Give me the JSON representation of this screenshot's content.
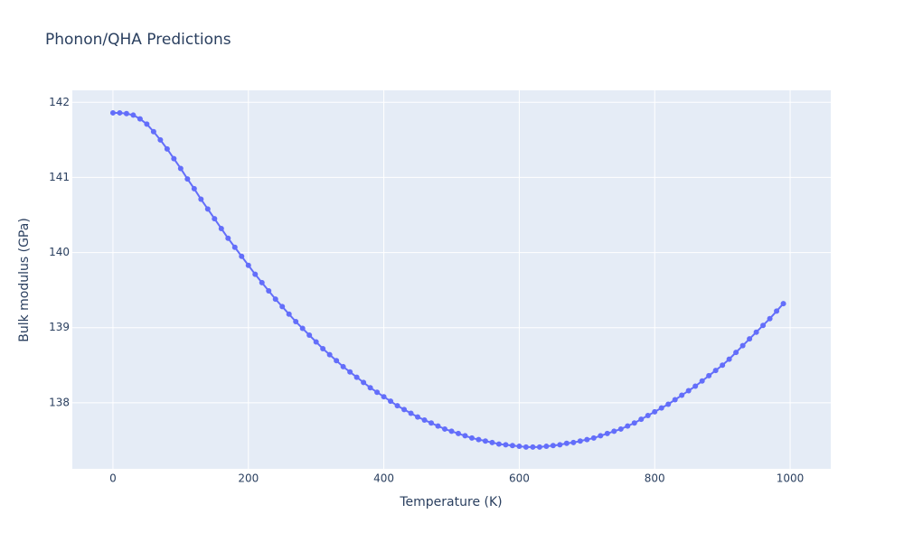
{
  "chart_data": {
    "type": "line",
    "title": "Phonon/QHA Predictions",
    "x_label": "Temperature (K)",
    "y_label": "Bulk modulus (GPa)",
    "x": [
      0,
      10,
      20,
      30,
      40,
      50,
      60,
      70,
      80,
      90,
      100,
      110,
      120,
      130,
      140,
      150,
      160,
      170,
      180,
      190,
      200,
      210,
      220,
      230,
      240,
      250,
      260,
      270,
      280,
      290,
      300,
      310,
      320,
      330,
      340,
      350,
      360,
      370,
      380,
      390,
      400,
      410,
      420,
      430,
      440,
      450,
      460,
      470,
      480,
      490,
      500,
      510,
      520,
      530,
      540,
      550,
      560,
      570,
      580,
      590,
      600,
      610,
      620,
      630,
      640,
      650,
      660,
      670,
      680,
      690,
      700,
      710,
      720,
      730,
      740,
      750,
      760,
      770,
      780,
      790,
      800,
      810,
      820,
      830,
      840,
      850,
      860,
      870,
      880,
      890,
      900,
      910,
      920,
      930,
      940,
      950,
      960,
      970,
      980,
      990
    ],
    "series": [
      {
        "name": "Bulk modulus",
        "color": "#636efa",
        "values": [
          141.86,
          141.86,
          141.85,
          141.83,
          141.78,
          141.71,
          141.61,
          141.5,
          141.38,
          141.25,
          141.12,
          140.98,
          140.85,
          140.71,
          140.58,
          140.45,
          140.32,
          140.19,
          140.07,
          139.95,
          139.83,
          139.71,
          139.6,
          139.49,
          139.38,
          139.28,
          139.18,
          139.08,
          138.99,
          138.9,
          138.81,
          138.72,
          138.64,
          138.56,
          138.48,
          138.41,
          138.34,
          138.27,
          138.2,
          138.14,
          138.08,
          138.02,
          137.96,
          137.91,
          137.86,
          137.81,
          137.77,
          137.73,
          137.69,
          137.65,
          137.62,
          137.59,
          137.56,
          137.53,
          137.51,
          137.49,
          137.47,
          137.45,
          137.44,
          137.43,
          137.42,
          137.41,
          137.41,
          137.41,
          137.42,
          137.43,
          137.44,
          137.46,
          137.47,
          137.49,
          137.51,
          137.53,
          137.56,
          137.59,
          137.62,
          137.65,
          137.69,
          137.73,
          137.78,
          137.83,
          137.88,
          137.93,
          137.98,
          138.04,
          138.1,
          138.16,
          138.22,
          138.29,
          138.36,
          138.43,
          138.5,
          138.58,
          138.67,
          138.76,
          138.85,
          138.94,
          139.03,
          139.12,
          139.22,
          139.32
        ]
      }
    ],
    "xlim": [
      -60,
      1060
    ],
    "ylim": [
      137.12,
      142.16
    ],
    "xticks": [
      0,
      200,
      400,
      600,
      800,
      1000
    ],
    "yticks": [
      138,
      139,
      140,
      141,
      142
    ],
    "grid": true
  }
}
